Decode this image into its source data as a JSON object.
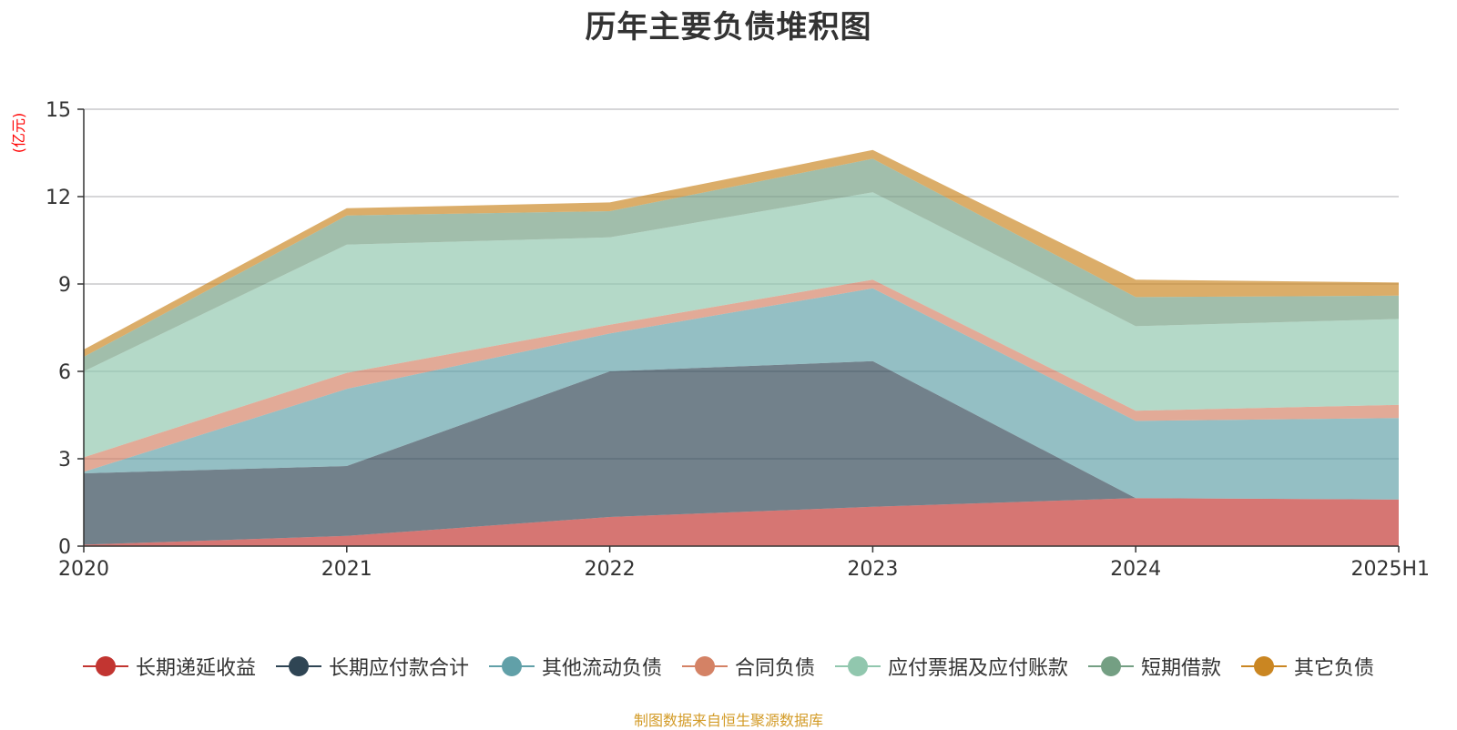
{
  "chart_data": {
    "type": "area",
    "stacked": true,
    "title": "历年主要负债堆积图",
    "ylabel": "(亿元)",
    "xlabel": "",
    "x": [
      "2020",
      "2021",
      "2022",
      "2023",
      "2024",
      "2025H1"
    ],
    "ylim": [
      0,
      15
    ],
    "yticks": [
      0,
      3,
      6,
      9,
      12,
      15
    ],
    "grid": true,
    "legend_position": "bottom",
    "series": [
      {
        "name": "长期递延收益",
        "color": "#c23531",
        "values": [
          0.05,
          0.35,
          1.0,
          1.35,
          1.65,
          1.6
        ]
      },
      {
        "name": "长期应付款合计",
        "color": "#2f4554",
        "values": [
          2.45,
          2.4,
          5.0,
          5.0,
          0.0,
          0.0
        ]
      },
      {
        "name": "其他流动负债",
        "color": "#61a0a8",
        "values": [
          0.05,
          2.65,
          1.3,
          2.5,
          2.65,
          2.8
        ]
      },
      {
        "name": "合同负债",
        "color": "#d48265",
        "values": [
          0.5,
          0.55,
          0.3,
          0.3,
          0.35,
          0.45
        ]
      },
      {
        "name": "应付票据及应付账款",
        "color": "#91c7ae",
        "values": [
          2.95,
          4.4,
          3.0,
          3.0,
          2.9,
          2.95
        ]
      },
      {
        "name": "短期借款",
        "color": "#749f83",
        "values": [
          0.5,
          1.0,
          0.9,
          1.15,
          1.0,
          0.8
        ]
      },
      {
        "name": "其它负债",
        "color": "#ca8622",
        "values": [
          0.25,
          0.25,
          0.3,
          0.3,
          0.6,
          0.45
        ]
      }
    ]
  },
  "footer": {
    "note": "制图数据来自恒生聚源数据库"
  }
}
